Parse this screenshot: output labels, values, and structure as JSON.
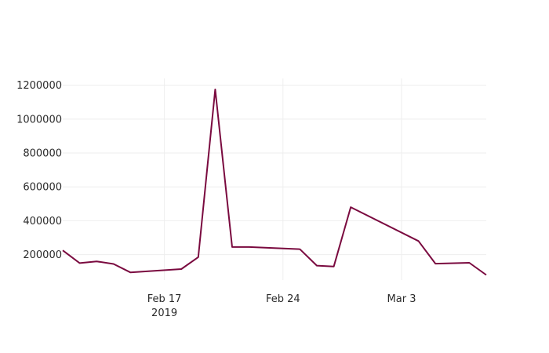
{
  "chart_data": {
    "type": "line",
    "title": "",
    "xlabel": "",
    "ylabel": "",
    "x_range": [
      "2019-02-11",
      "2019-03-08"
    ],
    "ylim": [
      50000,
      1240000
    ],
    "grid": true,
    "legend": "none",
    "colors": {
      "line": "#7a0a3f",
      "grid": "#eeeeee",
      "text": "#2a2a2a"
    },
    "x_ticks": [
      {
        "date": "2019-02-17",
        "label": "Feb 17",
        "sublabel": "2019"
      },
      {
        "date": "2019-02-24",
        "label": "Feb 24",
        "sublabel": ""
      },
      {
        "date": "2019-03-03",
        "label": "Mar 3",
        "sublabel": ""
      }
    ],
    "y_ticks": [
      {
        "value": 200000,
        "label": "200000"
      },
      {
        "value": 400000,
        "label": "400000"
      },
      {
        "value": 600000,
        "label": "600000"
      },
      {
        "value": 800000,
        "label": "800000"
      },
      {
        "value": 1000000,
        "label": "1000000"
      },
      {
        "value": 1200000,
        "label": "1200000"
      }
    ],
    "series": [
      {
        "x": [
          "2019-02-11",
          "2019-02-12",
          "2019-02-13",
          "2019-02-14",
          "2019-02-15",
          "2019-02-18",
          "2019-02-19",
          "2019-02-20",
          "2019-02-21",
          "2019-02-22",
          "2019-02-25",
          "2019-02-26",
          "2019-02-27",
          "2019-02-28",
          "2019-03-04",
          "2019-03-05",
          "2019-03-07",
          "2019-03-08"
        ],
        "y": [
          225000,
          150000,
          160000,
          145000,
          95000,
          115000,
          185000,
          1175000,
          245000,
          245000,
          232000,
          135000,
          130000,
          480000,
          280000,
          147000,
          152000,
          80000
        ]
      }
    ]
  }
}
